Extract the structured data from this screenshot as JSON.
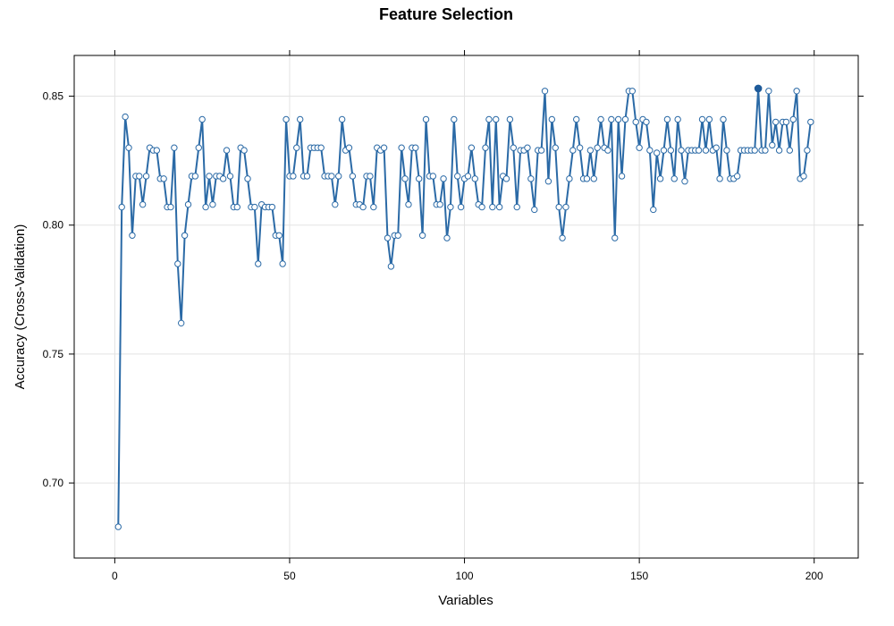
{
  "chart_data": {
    "type": "line",
    "title": "Feature Selection",
    "xlabel": "Variables",
    "ylabel": "Accuracy (Cross-Validation)",
    "xlim": [
      -11.6,
      212.6
    ],
    "ylim": [
      0.6709,
      0.8658
    ],
    "xticks": [
      0,
      50,
      100,
      150,
      200
    ],
    "xtick_labels": [
      "0",
      "50",
      "100",
      "150",
      "200"
    ],
    "yticks": [
      0.7,
      0.75,
      0.8,
      0.85
    ],
    "ytick_labels": [
      "0.70",
      "0.75",
      "0.80",
      "0.85"
    ],
    "grid": true,
    "line_color": "#2b6aa6",
    "highlight_color": "#1f5b9a",
    "highlight_x": 184,
    "series": [
      {
        "name": "",
        "x": [
          1,
          2,
          3,
          4,
          5,
          6,
          7,
          8,
          9,
          10,
          11,
          12,
          13,
          14,
          15,
          16,
          17,
          18,
          19,
          20,
          21,
          22,
          23,
          24,
          25,
          26,
          27,
          28,
          29,
          30,
          31,
          32,
          33,
          34,
          35,
          36,
          37,
          38,
          39,
          40,
          41,
          42,
          43,
          44,
          45,
          46,
          47,
          48,
          49,
          50,
          51,
          52,
          53,
          54,
          55,
          56,
          57,
          58,
          59,
          60,
          61,
          62,
          63,
          64,
          65,
          66,
          67,
          68,
          69,
          70,
          71,
          72,
          73,
          74,
          75,
          76,
          77,
          78,
          79,
          80,
          81,
          82,
          83,
          84,
          85,
          86,
          87,
          88,
          89,
          90,
          91,
          92,
          93,
          94,
          95,
          96,
          97,
          98,
          99,
          100,
          101,
          102,
          103,
          104,
          105,
          106,
          107,
          108,
          109,
          110,
          111,
          112,
          113,
          114,
          115,
          116,
          117,
          118,
          119,
          120,
          121,
          122,
          123,
          124,
          125,
          126,
          127,
          128,
          129,
          130,
          131,
          132,
          133,
          134,
          135,
          136,
          137,
          138,
          139,
          140,
          141,
          142,
          143,
          144,
          145,
          146,
          147,
          148,
          149,
          150,
          151,
          152,
          153,
          154,
          155,
          156,
          157,
          158,
          159,
          160,
          161,
          162,
          163,
          164,
          165,
          166,
          167,
          168,
          169,
          170,
          171,
          172,
          173,
          174,
          175,
          176,
          177,
          178,
          179,
          180,
          181,
          182,
          183,
          184,
          185,
          186,
          187,
          188,
          189,
          190,
          191,
          192,
          193,
          194,
          195,
          196,
          197,
          198,
          199
        ],
        "y": [
          0.683,
          0.807,
          0.842,
          0.83,
          0.796,
          0.819,
          0.819,
          0.808,
          0.819,
          0.83,
          0.829,
          0.829,
          0.818,
          0.818,
          0.807,
          0.807,
          0.83,
          0.785,
          0.762,
          0.796,
          0.808,
          0.819,
          0.819,
          0.83,
          0.841,
          0.807,
          0.819,
          0.808,
          0.819,
          0.819,
          0.818,
          0.829,
          0.819,
          0.807,
          0.807,
          0.83,
          0.829,
          0.818,
          0.807,
          0.807,
          0.785,
          0.808,
          0.807,
          0.807,
          0.807,
          0.796,
          0.796,
          0.785,
          0.841,
          0.819,
          0.819,
          0.83,
          0.841,
          0.819,
          0.819,
          0.83,
          0.83,
          0.83,
          0.83,
          0.819,
          0.819,
          0.819,
          0.808,
          0.819,
          0.841,
          0.829,
          0.83,
          0.819,
          0.808,
          0.808,
          0.807,
          0.819,
          0.819,
          0.807,
          0.83,
          0.829,
          0.83,
          0.795,
          0.784,
          0.796,
          0.796,
          0.83,
          0.818,
          0.808,
          0.83,
          0.83,
          0.818,
          0.796,
          0.841,
          0.819,
          0.819,
          0.808,
          0.808,
          0.818,
          0.795,
          0.807,
          0.841,
          0.819,
          0.807,
          0.818,
          0.819,
          0.83,
          0.818,
          0.808,
          0.807,
          0.83,
          0.841,
          0.807,
          0.841,
          0.807,
          0.819,
          0.818,
          0.841,
          0.83,
          0.807,
          0.829,
          0.829,
          0.83,
          0.818,
          0.806,
          0.829,
          0.829,
          0.852,
          0.817,
          0.841,
          0.83,
          0.807,
          0.795,
          0.807,
          0.818,
          0.829,
          0.841,
          0.83,
          0.818,
          0.818,
          0.829,
          0.818,
          0.83,
          0.841,
          0.83,
          0.829,
          0.841,
          0.795,
          0.841,
          0.819,
          0.841,
          0.852,
          0.852,
          0.84,
          0.83,
          0.841,
          0.84,
          0.829,
          0.806,
          0.828,
          0.818,
          0.829,
          0.841,
          0.829,
          0.818,
          0.841,
          0.829,
          0.817,
          0.829,
          0.829,
          0.829,
          0.829,
          0.841,
          0.829,
          0.841,
          0.829,
          0.83,
          0.818,
          0.841,
          0.829,
          0.818,
          0.818,
          0.819,
          0.829,
          0.829,
          0.829,
          0.829,
          0.829,
          0.853,
          0.829,
          0.829,
          0.852,
          0.831,
          0.84,
          0.829,
          0.84,
          0.84,
          0.829,
          0.841,
          0.852,
          0.818,
          0.819,
          0.829,
          0.84
        ]
      }
    ]
  }
}
